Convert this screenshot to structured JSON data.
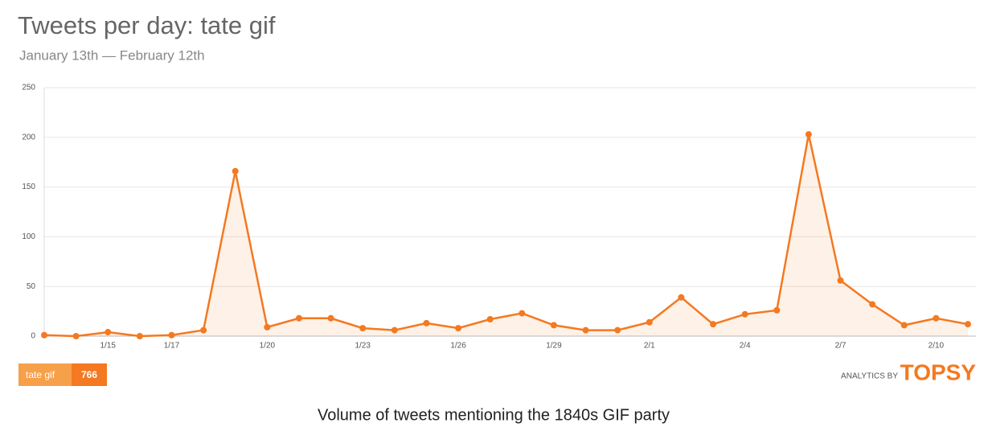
{
  "chart_data": {
    "type": "line",
    "title": "Tweets per day: tate gif",
    "subtitle": "January 13th — February 12th",
    "categories": [
      null,
      null,
      "1/15",
      null,
      "1/17",
      null,
      null,
      "1/20",
      null,
      null,
      "1/23",
      null,
      null,
      "1/26",
      null,
      null,
      "1/29",
      null,
      null,
      "2/1",
      null,
      null,
      "2/4",
      null,
      null,
      "2/7",
      null,
      null,
      "2/10",
      null
    ],
    "series": [
      {
        "name": "tate gif",
        "color": "#f47920",
        "values": [
          1,
          0,
          4,
          0,
          1,
          6,
          166,
          9,
          18,
          18,
          8,
          6,
          13,
          8,
          17,
          23,
          11,
          6,
          6,
          14,
          39,
          12,
          22,
          26,
          203,
          56,
          32,
          11,
          18,
          12
        ]
      }
    ],
    "total": 766,
    "credit": "ANALYTICS BY",
    "brand": "TOPSY",
    "caption": "Volume of tweets mentioning the 1840s GIF party",
    "ylim": [
      0,
      250
    ],
    "yticks": [
      0,
      50,
      100,
      150,
      200,
      250
    ],
    "grid": true,
    "area": true
  }
}
